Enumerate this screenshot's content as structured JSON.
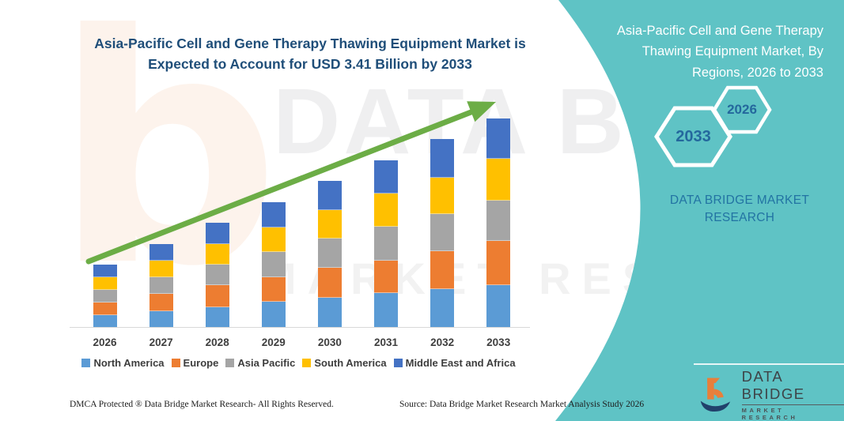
{
  "header": {
    "title_line1": "Asia-Pacific Cell and Gene Therapy Thawing Equipment Market is",
    "title_line2": "Expected to Account for USD 3.41 Billion by 2033"
  },
  "chart_data": {
    "type": "bar",
    "stacked": true,
    "title": "Asia-Pacific Cell and Gene Therapy Thawing Equipment Market is Expected to Account for USD 3.41 Billion by 2033",
    "unit": "USD Billion",
    "categories": [
      "2026",
      "2027",
      "2028",
      "2029",
      "2030",
      "2031",
      "2032",
      "2033"
    ],
    "series": [
      {
        "name": "North America",
        "color": "#5B9BD5",
        "values": [
          0.21,
          0.27,
          0.34,
          0.43,
          0.49,
          0.57,
          0.63,
          0.69
        ]
      },
      {
        "name": "Europe",
        "color": "#ED7D31",
        "values": [
          0.2,
          0.28,
          0.35,
          0.39,
          0.49,
          0.52,
          0.62,
          0.72
        ]
      },
      {
        "name": "Asia Pacific",
        "color": "#A5A5A5",
        "values": [
          0.21,
          0.28,
          0.34,
          0.41,
          0.47,
          0.56,
          0.6,
          0.66
        ]
      },
      {
        "name": "South America",
        "color": "#FFC000",
        "values": [
          0.21,
          0.27,
          0.34,
          0.41,
          0.47,
          0.54,
          0.6,
          0.69
        ]
      },
      {
        "name": "Middle East and Africa",
        "color": "#4472C4",
        "values": [
          0.2,
          0.27,
          0.34,
          0.41,
          0.47,
          0.54,
          0.62,
          0.65
        ]
      }
    ],
    "totals": [
      1.03,
      1.37,
      1.71,
      2.05,
      2.39,
      2.73,
      3.07,
      3.41
    ],
    "ylim": [
      0,
      3.6
    ],
    "grid": false,
    "legend_position": "bottom",
    "trend_arrow": {
      "direction": "up",
      "color": "#6CAD46"
    }
  },
  "side_panel": {
    "accent_color": "#5FC3C5",
    "title_lines": [
      "Asia-Pacific Cell and Gene Therapy",
      "Thawing Equipment Market, By",
      "Regions, 2026 to 2033"
    ],
    "hexagons": [
      {
        "label": "2033"
      },
      {
        "label": "2026"
      }
    ],
    "brand_line1": "DATA BRIDGE MARKET",
    "brand_line2": "RESEARCH"
  },
  "logo": {
    "name": "DATA BRIDGE",
    "subtitle": "MARKET RESEARCH",
    "orange": "#E87F3A",
    "navy": "#21406B"
  },
  "footer": {
    "left": "DMCA Protected ® Data Bridge Market Research-  All Rights Reserved.",
    "source": "Source: Data Bridge Market Research  Market Analysis Study 2026"
  },
  "watermarks": {
    "letter": "b",
    "big_text": "DATA BRI",
    "mid_text": "MARKET RESE"
  }
}
